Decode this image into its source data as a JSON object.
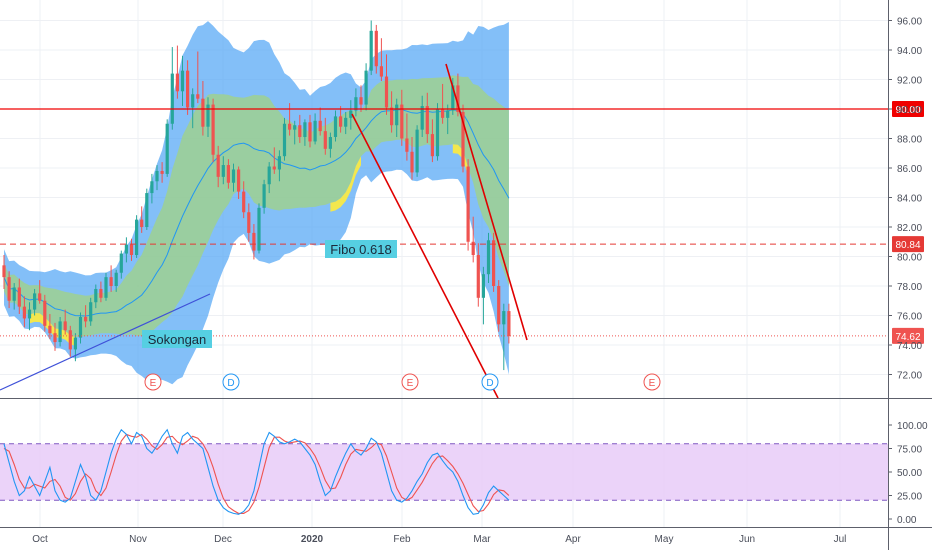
{
  "chart_data": [
    {
      "type": "candlestick",
      "ylim": [
        70.6,
        97.2
      ],
      "y_ticks": [
        "72.00",
        "74.00",
        "76.00",
        "78.00",
        "80.00",
        "82.00",
        "84.00",
        "86.00",
        "88.00",
        "90.00",
        "92.00",
        "94.00",
        "96.00"
      ],
      "x_ticks": [
        "Oct",
        "Nov",
        "Dec",
        "2020",
        "Feb",
        "Mar",
        "Apr",
        "May",
        "Jun",
        "Jul"
      ],
      "candles": [
        [
          79.4,
          80.1,
          77.8,
          78.6
        ],
        [
          78.6,
          79.0,
          76.5,
          77.0
        ],
        [
          77.0,
          78.2,
          76.4,
          77.9
        ],
        [
          77.9,
          78.5,
          76.1,
          76.6
        ],
        [
          76.6,
          77.3,
          75.2,
          75.8
        ],
        [
          75.8,
          76.9,
          75.0,
          76.4
        ],
        [
          76.4,
          77.8,
          76.0,
          77.5
        ],
        [
          77.5,
          78.4,
          76.8,
          77.0
        ],
        [
          77.0,
          77.4,
          74.9,
          75.3
        ],
        [
          75.3,
          76.1,
          74.4,
          74.8
        ],
        [
          74.8,
          75.5,
          73.6,
          74.2
        ],
        [
          74.2,
          75.9,
          73.9,
          75.6
        ],
        [
          75.6,
          76.4,
          74.7,
          75.0
        ],
        [
          75.0,
          75.3,
          73.2,
          73.7
        ],
        [
          73.7,
          74.8,
          72.9,
          74.5
        ],
        [
          74.5,
          76.2,
          74.1,
          75.9
        ],
        [
          75.9,
          76.7,
          75.2,
          75.6
        ],
        [
          75.6,
          77.2,
          75.3,
          76.9
        ],
        [
          76.9,
          78.1,
          76.5,
          77.8
        ],
        [
          77.8,
          78.3,
          76.9,
          77.2
        ],
        [
          77.2,
          78.9,
          77.0,
          78.6
        ],
        [
          78.6,
          79.4,
          77.6,
          78.0
        ],
        [
          78.0,
          79.1,
          77.6,
          78.9
        ],
        [
          78.9,
          80.4,
          78.5,
          80.2
        ],
        [
          80.2,
          81.3,
          79.6,
          80.8
        ],
        [
          80.8,
          81.2,
          79.7,
          80.1
        ],
        [
          80.1,
          82.8,
          79.9,
          82.5
        ],
        [
          82.5,
          83.4,
          81.6,
          82.0
        ],
        [
          82.0,
          84.6,
          81.8,
          84.3
        ],
        [
          84.3,
          85.6,
          83.6,
          85.1
        ],
        [
          85.1,
          86.2,
          84.5,
          85.8
        ],
        [
          85.8,
          86.4,
          85.0,
          85.6
        ],
        [
          85.6,
          89.3,
          85.4,
          89.0
        ],
        [
          89.0,
          94.2,
          88.6,
          92.4
        ],
        [
          92.4,
          94.3,
          90.7,
          91.2
        ],
        [
          91.2,
          93.6,
          90.2,
          92.6
        ],
        [
          92.6,
          93.3,
          89.6,
          90.1
        ],
        [
          90.1,
          91.4,
          88.7,
          91.0
        ],
        [
          91.0,
          93.9,
          90.4,
          90.7
        ],
        [
          90.7,
          91.9,
          88.2,
          88.8
        ],
        [
          88.8,
          90.8,
          88.1,
          90.3
        ],
        [
          90.3,
          90.7,
          86.4,
          86.9
        ],
        [
          86.9,
          87.5,
          84.7,
          85.4
        ],
        [
          85.4,
          86.8,
          84.9,
          86.2
        ],
        [
          86.2,
          86.6,
          84.6,
          85.0
        ],
        [
          85.0,
          86.3,
          84.4,
          85.9
        ],
        [
          85.9,
          86.1,
          83.9,
          84.4
        ],
        [
          84.4,
          85.1,
          82.6,
          83.0
        ],
        [
          83.0,
          83.6,
          81.0,
          81.6
        ],
        [
          81.6,
          82.2,
          79.8,
          80.4
        ],
        [
          80.4,
          83.6,
          80.2,
          83.3
        ],
        [
          83.3,
          85.2,
          82.9,
          84.9
        ],
        [
          84.9,
          86.4,
          84.3,
          86.1
        ],
        [
          86.1,
          87.4,
          85.6,
          85.9
        ],
        [
          85.9,
          87.2,
          85.1,
          86.8
        ],
        [
          86.8,
          89.4,
          86.5,
          89.0
        ],
        [
          89.0,
          90.4,
          88.2,
          88.6
        ],
        [
          88.6,
          89.2,
          87.6,
          88.9
        ],
        [
          88.9,
          89.6,
          87.7,
          88.1
        ],
        [
          88.1,
          89.3,
          87.5,
          89.1
        ],
        [
          89.1,
          89.6,
          87.4,
          87.8
        ],
        [
          87.8,
          89.7,
          87.6,
          89.2
        ],
        [
          89.2,
          90.1,
          88.2,
          88.5
        ],
        [
          88.5,
          89.4,
          86.9,
          87.3
        ],
        [
          87.3,
          88.4,
          86.7,
          88.1
        ],
        [
          88.1,
          89.9,
          87.8,
          89.5
        ],
        [
          89.5,
          90.2,
          88.4,
          88.8
        ],
        [
          88.8,
          89.8,
          88.3,
          89.4
        ],
        [
          89.4,
          90.6,
          88.6,
          89.9
        ],
        [
          89.9,
          91.4,
          89.5,
          90.8
        ],
        [
          90.8,
          91.6,
          89.8,
          90.3
        ],
        [
          90.3,
          93.1,
          89.9,
          92.6
        ],
        [
          92.6,
          96.0,
          92.3,
          95.3
        ],
        [
          95.3,
          95.7,
          92.4,
          92.9
        ],
        [
          92.9,
          94.8,
          91.9,
          92.2
        ],
        [
          92.2,
          93.7,
          89.6,
          90.1
        ],
        [
          90.1,
          91.2,
          88.4,
          88.9
        ],
        [
          88.9,
          90.7,
          88.1,
          90.3
        ],
        [
          90.3,
          91.3,
          87.5,
          88.0
        ],
        [
          88.0,
          89.7,
          86.5,
          87.1
        ],
        [
          87.1,
          88.1,
          85.2,
          85.7
        ],
        [
          85.7,
          88.9,
          85.4,
          88.6
        ],
        [
          88.6,
          90.9,
          88.1,
          90.2
        ],
        [
          90.2,
          91.1,
          87.7,
          88.3
        ],
        [
          88.3,
          89.3,
          86.4,
          86.8
        ],
        [
          86.8,
          90.4,
          86.5,
          90.0
        ],
        [
          90.0,
          91.7,
          89.0,
          89.4
        ],
        [
          89.4,
          90.3,
          88.3,
          89.9
        ],
        [
          89.9,
          92.1,
          89.6,
          91.6
        ],
        [
          91.6,
          92.4,
          89.5,
          89.8
        ],
        [
          89.8,
          90.3,
          85.7,
          86.1
        ],
        [
          86.1,
          86.6,
          80.4,
          81.0
        ],
        [
          81.0,
          82.7,
          79.6,
          80.1
        ],
        [
          80.1,
          80.9,
          76.6,
          77.2
        ],
        [
          77.2,
          79.3,
          75.4,
          78.8
        ],
        [
          78.8,
          81.6,
          78.2,
          81.1
        ],
        [
          81.1,
          81.6,
          77.6,
          78.0
        ],
        [
          78.0,
          78.4,
          74.9,
          75.4
        ],
        [
          75.4,
          76.8,
          72.3,
          76.3
        ],
        [
          76.3,
          76.8,
          74.1,
          74.6
        ]
      ],
      "bollinger_fill_color": "#5aaaf5",
      "channel_fill_color": "#9ccf96",
      "highlight_color": "#ffeb3b",
      "up_color": "#26a69a",
      "down_color": "#ef5350",
      "horizontal_levels": [
        {
          "value": 90.0,
          "label": "90.00",
          "style": "solid",
          "color": "#f00000"
        },
        {
          "value": 80.84,
          "label": "80.84",
          "style": "dashed",
          "color": "#e53935"
        },
        {
          "value": 74.62,
          "label": "74.62",
          "style": "dotted",
          "color": "#ef5350"
        }
      ],
      "annotations": [
        {
          "text": "Fibo 0.618"
        },
        {
          "text": "Sokongan"
        }
      ],
      "event_markers": [
        {
          "label": "E",
          "type": "earnings"
        },
        {
          "label": "D",
          "type": "dividend"
        },
        {
          "label": "E",
          "type": "earnings"
        },
        {
          "label": "D",
          "type": "dividend"
        },
        {
          "label": "E",
          "type": "earnings"
        }
      ]
    },
    {
      "type": "line",
      "name": "stochastic",
      "ylim": [
        0,
        100
      ],
      "y_ticks": [
        "0.00",
        "25.00",
        "50.00",
        "75.00",
        "100.00"
      ],
      "band": [
        20,
        80
      ],
      "band_color": "#e6c8f8",
      "k_color": "#2196f3",
      "d_color": "#ef5350",
      "k": [
        80,
        60,
        40,
        25,
        30,
        45,
        35,
        25,
        40,
        55,
        30,
        20,
        18,
        22,
        40,
        58,
        45,
        25,
        20,
        30,
        50,
        70,
        85,
        95,
        90,
        80,
        92,
        88,
        75,
        70,
        78,
        88,
        95,
        80,
        70,
        88,
        92,
        85,
        80,
        75,
        55,
        35,
        20,
        12,
        8,
        6,
        5,
        8,
        15,
        30,
        55,
        80,
        92,
        88,
        82,
        80,
        82,
        85,
        82,
        75,
        68,
        58,
        40,
        25,
        30,
        45,
        58,
        70,
        80,
        72,
        68,
        75,
        86,
        82,
        70,
        50,
        30,
        20,
        18,
        22,
        30,
        40,
        48,
        60,
        68,
        70,
        62,
        55,
        50,
        40,
        25,
        12,
        5,
        6,
        15,
        28,
        35,
        30,
        25,
        20
      ],
      "d": [
        75,
        72,
        58,
        42,
        33,
        33,
        37,
        35,
        33,
        40,
        42,
        35,
        23,
        20,
        27,
        40,
        48,
        43,
        30,
        25,
        33,
        50,
        68,
        83,
        90,
        88,
        87,
        90,
        85,
        78,
        74,
        79,
        87,
        88,
        82,
        79,
        83,
        88,
        86,
        80,
        70,
        55,
        37,
        22,
        13,
        9,
        6,
        6,
        9,
        18,
        34,
        55,
        76,
        87,
        87,
        83,
        81,
        82,
        83,
        81,
        75,
        67,
        55,
        41,
        32,
        33,
        44,
        58,
        69,
        74,
        73,
        72,
        76,
        81,
        79,
        67,
        50,
        33,
        23,
        20,
        23,
        31,
        39,
        49,
        59,
        66,
        67,
        62,
        56,
        48,
        38,
        26,
        14,
        8,
        9,
        16,
        26,
        31,
        30,
        25
      ]
    }
  ]
}
